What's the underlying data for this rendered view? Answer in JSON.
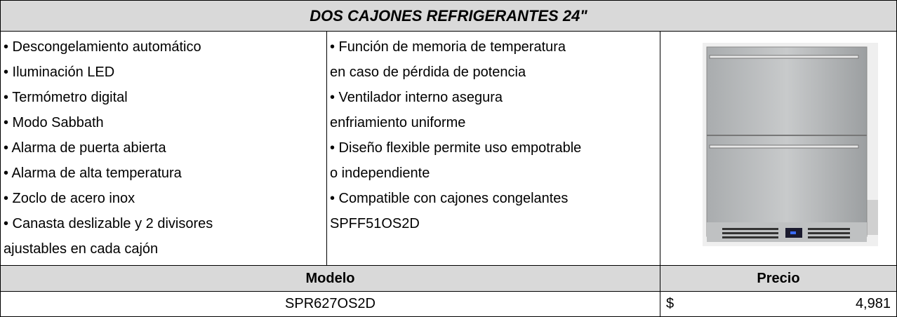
{
  "title": "DOS CAJONES REFRIGERANTES 24\"",
  "features": {
    "left": [
      "• Descongelamiento automático",
      "• Iluminación LED",
      "• Termómetro digital",
      "• Modo Sabbath",
      "• Alarma de puerta abierta",
      "• Alarma de alta temperatura",
      "• Zoclo de acero inox",
      "• Canasta deslizable y 2 divisores",
      "ajustables en cada cajón"
    ],
    "middle": [
      "• Función de memoria de temperatura",
      "en caso de pérdida de potencia",
      "• Ventilador interno asegura",
      "enfriamiento uniforme",
      "• Diseño flexible permite uso empotrable",
      "o independiente",
      "• Compatible con cajones congelantes",
      "SPFF51OS2D"
    ]
  },
  "table": {
    "headers": [
      "Modelo",
      "Precio"
    ],
    "rows": [
      [
        "SPR627OS2D",
        "$",
        "4,981"
      ]
    ]
  }
}
